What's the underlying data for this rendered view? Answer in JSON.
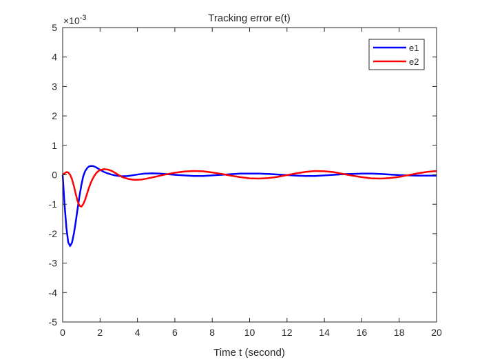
{
  "chart_data": {
    "type": "line",
    "title": "Tracking error e(t)",
    "xlabel": "Time t (second)",
    "ylabel": "",
    "exponent_label": "×10",
    "exponent_power": "-3",
    "xlim": [
      0,
      20
    ],
    "ylim": [
      -5,
      5
    ],
    "xticks": [
      0,
      2,
      4,
      6,
      8,
      10,
      12,
      14,
      16,
      18,
      20
    ],
    "yticks": [
      -5,
      -4,
      -3,
      -2,
      -1,
      0,
      1,
      2,
      3,
      4,
      5
    ],
    "grid": false,
    "legend_position": "top-right",
    "series": [
      {
        "name": "e1",
        "color": "#0000ff",
        "x": [
          0,
          0.1,
          0.2,
          0.3,
          0.4,
          0.5,
          0.6,
          0.7,
          0.8,
          0.9,
          1.0,
          1.1,
          1.2,
          1.3,
          1.4,
          1.5,
          1.6,
          1.7,
          1.8,
          1.9,
          2.0,
          2.2,
          2.4,
          2.6,
          2.8,
          3.0,
          3.2,
          3.5,
          3.8,
          4.0,
          4.4,
          4.8,
          5.2,
          5.6,
          6.0,
          6.5,
          7.0,
          7.5,
          8.0,
          8.5,
          9.0,
          9.5,
          10.0,
          10.5,
          11.0,
          11.5,
          12.0,
          12.5,
          13.0,
          13.5,
          14.0,
          14.5,
          15.0,
          15.5,
          16.0,
          16.5,
          17.0,
          17.5,
          18.0,
          18.5,
          19.0,
          19.5,
          20.0
        ],
        "y": [
          0,
          -1.0,
          -1.8,
          -2.3,
          -2.42,
          -2.3,
          -2.0,
          -1.6,
          -1.15,
          -0.72,
          -0.35,
          -0.05,
          0.12,
          0.22,
          0.28,
          0.3,
          0.3,
          0.28,
          0.25,
          0.21,
          0.17,
          0.1,
          0.05,
          0.01,
          -0.02,
          -0.04,
          -0.05,
          -0.04,
          -0.01,
          0.01,
          0.04,
          0.05,
          0.04,
          0.02,
          0.0,
          -0.02,
          -0.04,
          -0.04,
          -0.02,
          0.0,
          0.02,
          0.04,
          0.04,
          0.04,
          0.03,
          0.01,
          -0.01,
          -0.03,
          -0.04,
          -0.04,
          -0.02,
          0.0,
          0.02,
          0.03,
          0.04,
          0.04,
          0.03,
          0.01,
          -0.01,
          -0.02,
          -0.03,
          -0.03,
          -0.03
        ]
      },
      {
        "name": "e2",
        "color": "#ff0000",
        "x": [
          0,
          0.1,
          0.2,
          0.3,
          0.4,
          0.5,
          0.6,
          0.7,
          0.8,
          0.9,
          1.0,
          1.1,
          1.2,
          1.3,
          1.4,
          1.5,
          1.6,
          1.7,
          1.8,
          1.9,
          2.0,
          2.2,
          2.4,
          2.6,
          2.8,
          3.0,
          3.2,
          3.5,
          3.8,
          4.0,
          4.2,
          4.5,
          5.0,
          5.5,
          6.0,
          6.5,
          7.0,
          7.5,
          8.0,
          8.5,
          9.0,
          9.5,
          10.0,
          10.5,
          11.0,
          11.5,
          12.0,
          12.5,
          13.0,
          13.5,
          14.0,
          14.5,
          15.0,
          15.5,
          16.0,
          16.5,
          17.0,
          17.5,
          18.0,
          18.5,
          19.0,
          19.5,
          20.0
        ],
        "y": [
          0,
          0.05,
          0.09,
          0.08,
          0.0,
          -0.15,
          -0.38,
          -0.65,
          -0.9,
          -1.05,
          -1.08,
          -1.0,
          -0.85,
          -0.65,
          -0.45,
          -0.28,
          -0.14,
          -0.03,
          0.06,
          0.12,
          0.16,
          0.19,
          0.18,
          0.14,
          0.07,
          -0.01,
          -0.08,
          -0.14,
          -0.17,
          -0.17,
          -0.16,
          -0.13,
          -0.06,
          0.01,
          0.07,
          0.11,
          0.13,
          0.12,
          0.08,
          0.03,
          -0.03,
          -0.08,
          -0.12,
          -0.13,
          -0.11,
          -0.07,
          -0.01,
          0.05,
          0.1,
          0.13,
          0.12,
          0.09,
          0.03,
          -0.03,
          -0.08,
          -0.12,
          -0.13,
          -0.11,
          -0.07,
          -0.01,
          0.05,
          0.1,
          0.13
        ]
      }
    ]
  }
}
